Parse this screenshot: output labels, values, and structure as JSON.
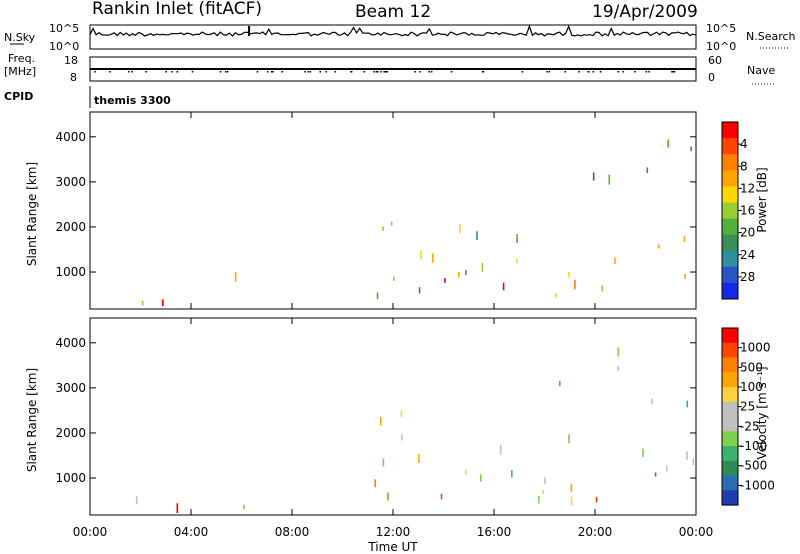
{
  "header": {
    "station": "Rankin Inlet (fitACF)",
    "beam": "Beam 12",
    "date": "19/Apr/2009"
  },
  "noise_panel": {
    "left_label": "N.Sky",
    "left_ticks": [
      "10^5",
      "10^0"
    ],
    "right_ticks": [
      "10^5",
      "10^0"
    ],
    "right_label": "N.Search"
  },
  "freq_panel": {
    "left_label_line1": "Freq.",
    "left_label_line2": "[MHz]",
    "left_ticks": [
      "18",
      "8"
    ],
    "right_ticks": [
      "60",
      "0"
    ],
    "right_label": "Nave"
  },
  "cpid_panel": {
    "label": "CPID",
    "value": "themis 3300"
  },
  "chart_data": [
    {
      "type": "heatmap",
      "name": "power",
      "ylabel": "Slant Range [km]",
      "yticks": [
        "1000",
        "2000",
        "3000",
        "4000"
      ],
      "ylim": [
        180,
        4550
      ],
      "xlim": [
        0,
        24
      ],
      "colorbar": {
        "label": "Power [dB]",
        "ticks": [
          "4",
          "8",
          "12",
          "16",
          "20",
          "24",
          "28"
        ],
        "colors": [
          "#1428e6",
          "#2a55c8",
          "#2f8ea0",
          "#3b8f56",
          "#52b23c",
          "#9acd32",
          "#ffd700",
          "#ffa500",
          "#ff7f00",
          "#ff4500",
          "#ff0000"
        ]
      },
      "scatter_regions": [
        {
          "t": [
            2.4,
            4.6
          ],
          "r": [
            200,
            700
          ],
          "level": 0.9
        },
        {
          "t": [
            4.4,
            6.2
          ],
          "r": [
            400,
            1300
          ],
          "level": 0.6
        },
        {
          "t": [
            0.3,
            2.6
          ],
          "r": [
            200,
            700
          ],
          "level": 0.4
        },
        {
          "t": [
            10.2,
            13.2
          ],
          "r": [
            300,
            2600
          ],
          "level": 0.5
        },
        {
          "t": [
            12.2,
            19.6
          ],
          "r": [
            500,
            2100
          ],
          "level": 0.55
        },
        {
          "t": [
            13.5,
            18.5
          ],
          "r": [
            600,
            1000
          ],
          "level": 0.8
        },
        {
          "t": [
            18.8,
            20.5
          ],
          "r": [
            400,
            900
          ],
          "level": 0.85
        },
        {
          "t": [
            19.5,
            24
          ],
          "r": [
            500,
            1800
          ],
          "level": 0.6
        },
        {
          "t": [
            20.5,
            24
          ],
          "r": [
            2700,
            4200
          ],
          "level": 0.4
        },
        {
          "t": [
            17.5,
            20.2
          ],
          "r": [
            2800,
            3300
          ],
          "level": 0.3
        }
      ]
    },
    {
      "type": "heatmap",
      "name": "velocity",
      "ylabel": "Slant Range [km]",
      "yticks": [
        "1000",
        "2000",
        "3000",
        "4000"
      ],
      "ylim": [
        180,
        4550
      ],
      "xlim": [
        0,
        24
      ],
      "colorbar": {
        "label": "Velocity [m s⁻¹]",
        "ticks": [
          "1000",
          "500",
          "100",
          "25",
          "-25",
          "-100",
          "-500",
          "-1000"
        ],
        "colors": [
          "#1e3cb4",
          "#2b6db3",
          "#2e8b57",
          "#3cb371",
          "#7fd04a",
          "#c0c0c0",
          "#c0c0c0",
          "#ffd040",
          "#ffa500",
          "#ff7f00",
          "#ff4500",
          "#ff0000"
        ]
      },
      "scatter_regions": [
        {
          "t": [
            2.4,
            4.6
          ],
          "r": [
            200,
            700
          ],
          "level": 0.75
        },
        {
          "t": [
            4.4,
            6.2
          ],
          "r": [
            400,
            1300
          ],
          "level": 0.2
        },
        {
          "t": [
            0.3,
            2.6
          ],
          "r": [
            200,
            700
          ],
          "level": 0.25
        },
        {
          "t": [
            10.2,
            13.2
          ],
          "r": [
            300,
            2600
          ],
          "level": 0.55
        },
        {
          "t": [
            12.2,
            19.6
          ],
          "r": [
            500,
            2100
          ],
          "level": 0.5
        },
        {
          "t": [
            13.5,
            18.5
          ],
          "r": [
            600,
            1000
          ],
          "level": 0.75
        },
        {
          "t": [
            18.8,
            20.5
          ],
          "r": [
            400,
            900
          ],
          "level": 0.8
        },
        {
          "t": [
            19.5,
            24
          ],
          "r": [
            500,
            1800
          ],
          "level": 0.3
        },
        {
          "t": [
            20.5,
            24
          ],
          "r": [
            2700,
            4200
          ],
          "level": 0.5
        },
        {
          "t": [
            17.5,
            20.2
          ],
          "r": [
            2800,
            3300
          ],
          "level": 0.5
        }
      ]
    }
  ],
  "x_axis": {
    "ticks": [
      "00:00",
      "04:00",
      "08:00",
      "12:00",
      "16:00",
      "20:00",
      "00:00"
    ],
    "label": "Time UT"
  }
}
